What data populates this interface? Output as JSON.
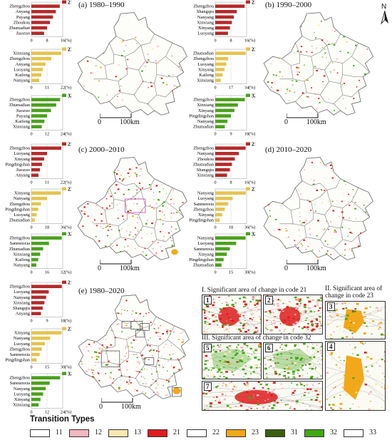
{
  "panels": [
    {
      "id": "a",
      "label": "(a) 1980–1990"
    },
    {
      "id": "b",
      "label": "(b) 1990–2000"
    },
    {
      "id": "c",
      "label": "(c) 2000–2010"
    },
    {
      "id": "d",
      "label": "(d) 2010–2020"
    },
    {
      "id": "e",
      "label": "(e) 1980–2020"
    }
  ],
  "scale_label": "100km",
  "scale_zero": "0",
  "north_label": "N",
  "unit_label": "(%)",
  "insets": {
    "groups": [
      {
        "label": "I. Significant area of change in code 21"
      },
      {
        "label": "II. Significant area of change in code 23"
      },
      {
        "label": "III. Significant area of change in code 32"
      }
    ],
    "panels": [
      "1",
      "2",
      "3",
      "4",
      "5",
      "6",
      "7"
    ]
  },
  "legend": {
    "title": "Transition Types",
    "items": [
      {
        "code": "11",
        "color": "#ffffff"
      },
      {
        "code": "12",
        "color": "#f4b6c2"
      },
      {
        "code": "13",
        "color": "#fbe6b0"
      },
      {
        "code": "21",
        "color": "#dd1c1c"
      },
      {
        "code": "22",
        "color": "#ffffff"
      },
      {
        "code": "23",
        "color": "#f2a818"
      },
      {
        "code": "31",
        "color": "#3a5f0b"
      },
      {
        "code": "32",
        "color": "#41a812"
      },
      {
        "code": "33",
        "color": "#ffffff"
      }
    ]
  },
  "colors": {
    "bar21": "#b52a2a",
    "bar23": "#e5c350",
    "bar32": "#4aa11c"
  },
  "chart_data": [
    {
      "type": "bar",
      "panel": "a",
      "code": "21",
      "categories": [
        "Zhengzhou",
        "Anyang",
        "Puyang",
        "Zhoukou",
        "Zhumadian",
        "Jiaozuo"
      ],
      "values": [
        14.5,
        12.5,
        11,
        9.5,
        8,
        6.5
      ],
      "xticks": [
        "0",
        "8",
        "16"
      ],
      "xmax": 16
    },
    {
      "type": "bar",
      "panel": "a",
      "code": "23",
      "categories": [
        "Xinxiang",
        "Zhengzhou",
        "Anyang",
        "Luoyang",
        "Kaifeng",
        "Nanyang"
      ],
      "values": [
        21,
        14,
        10,
        8,
        7,
        5.5
      ],
      "xticks": [
        "0",
        "11",
        "22"
      ],
      "xmax": 22
    },
    {
      "type": "bar",
      "panel": "a",
      "code": "32",
      "categories": [
        "Zhengzhou",
        "Zhumadian",
        "Jiaozuo",
        "Puyang",
        "Kaifeng",
        "Xinxiang"
      ],
      "values": [
        22,
        19,
        15,
        12,
        10,
        8
      ],
      "xticks": [
        "0",
        "12",
        "24"
      ],
      "xmax": 24
    },
    {
      "type": "bar",
      "panel": "b",
      "code": "21",
      "categories": [
        "Zhengzhou",
        "Shangqiu",
        "Nanyang",
        "Xinxiang",
        "Xinyang",
        "Luoyang"
      ],
      "values": [
        15,
        11,
        9.5,
        8.5,
        7.5,
        6.5
      ],
      "xticks": [
        "0",
        "8",
        "16"
      ],
      "xmax": 16
    },
    {
      "type": "bar",
      "panel": "b",
      "code": "23",
      "categories": [
        "Zhumadian",
        "Zhengzhou",
        "Luoyang",
        "Xinyang",
        "Kaifeng",
        "Xinxiang"
      ],
      "values": [
        33,
        14,
        12,
        10,
        8,
        6
      ],
      "xticks": [
        "0",
        "17",
        "34"
      ],
      "xmax": 34
    },
    {
      "type": "bar",
      "panel": "b",
      "code": "32",
      "categories": [
        "Zhengzhou",
        "Xinxiang",
        "Xinyang",
        "Pingdingshan",
        "Nanyang",
        "Zhumadian"
      ],
      "values": [
        17,
        13,
        11,
        9,
        7,
        5.5
      ],
      "xticks": [
        "0",
        "9",
        "18"
      ],
      "xmax": 18
    },
    {
      "type": "bar",
      "panel": "c",
      "code": "21",
      "categories": [
        "Zhengzhou",
        "Luoyang",
        "Xinyang",
        "Pingdingshan",
        "Jiaozuo",
        "Anyang"
      ],
      "values": [
        21,
        11,
        9,
        7.5,
        6,
        5
      ],
      "xticks": [
        "0",
        "11",
        "22"
      ],
      "xmax": 22
    },
    {
      "type": "bar",
      "panel": "c",
      "code": "23",
      "categories": [
        "Xinyang",
        "Nanyang",
        "Zhengzhou",
        "Pingdingshan",
        "Luoyang",
        "Zhumadian"
      ],
      "values": [
        34,
        18,
        11,
        8,
        6,
        4
      ],
      "xticks": [
        "0",
        "18",
        "36"
      ],
      "xmax": 36
    },
    {
      "type": "bar",
      "panel": "c",
      "code": "32",
      "categories": [
        "Zhengzhou",
        "Sanmenxia",
        "Zhumadian",
        "Xinxiang",
        "Kaifeng",
        "Nanyang"
      ],
      "values": [
        31,
        18,
        12,
        9,
        7,
        5
      ],
      "xticks": [
        "0",
        "16",
        "32"
      ],
      "xmax": 32
    },
    {
      "type": "bar",
      "panel": "d",
      "code": "21",
      "categories": [
        "Zhengzhou",
        "Nanyang",
        "Zhoukou",
        "Zhumadian",
        "Shangqiu",
        "Xinxiang"
      ],
      "values": [
        15.5,
        12,
        10,
        8.5,
        7.5,
        6
      ],
      "xticks": [
        "0",
        "8",
        "16"
      ],
      "xmax": 16
    },
    {
      "type": "bar",
      "panel": "d",
      "code": "23",
      "categories": [
        "Nanyang",
        "Luoyang",
        "Sanmenxia",
        "Zhengzhou",
        "Xinyang",
        "Pingdingshan"
      ],
      "values": [
        35,
        20,
        15,
        11,
        8,
        5
      ],
      "xticks": [
        "0",
        "18",
        "36"
      ],
      "xmax": 36
    },
    {
      "type": "bar",
      "panel": "d",
      "code": "32",
      "categories": [
        "Nanyang",
        "Luoyang",
        "Sanmenxia",
        "Xinyang",
        "Pingdingshan",
        "Zhumadian"
      ],
      "values": [
        29,
        20,
        14,
        11,
        8,
        6
      ],
      "xticks": [
        "0",
        "15",
        "30"
      ],
      "xmax": 30
    },
    {
      "type": "bar",
      "panel": "e",
      "code": "21",
      "categories": [
        "Zhengzhou",
        "Luoyang",
        "Nanyang",
        "Xinxiang",
        "Shangqiu",
        "Anyang"
      ],
      "values": [
        17.5,
        10,
        8.5,
        7.5,
        6.5,
        5.5
      ],
      "xticks": [
        "0",
        "9",
        "18"
      ],
      "xmax": 18
    },
    {
      "type": "bar",
      "panel": "e",
      "code": "23",
      "categories": [
        "Xinyang",
        "Nanyang",
        "Luoyang",
        "Zhengzhou",
        "Sanmenxia",
        "Pingdingshan"
      ],
      "values": [
        29,
        18,
        13,
        10,
        8,
        5
      ],
      "xticks": [
        "0",
        "15",
        "30"
      ],
      "xmax": 30
    },
    {
      "type": "bar",
      "panel": "e",
      "code": "32",
      "categories": [
        "Zhengzhou",
        "Sanmenxia",
        "Nanyang",
        "Luoyang",
        "Xinyang",
        "Xinxiang"
      ],
      "values": [
        22,
        14,
        11,
        9,
        7,
        5.5
      ],
      "xticks": [
        "0",
        "12",
        "24"
      ],
      "xmax": 24
    }
  ]
}
